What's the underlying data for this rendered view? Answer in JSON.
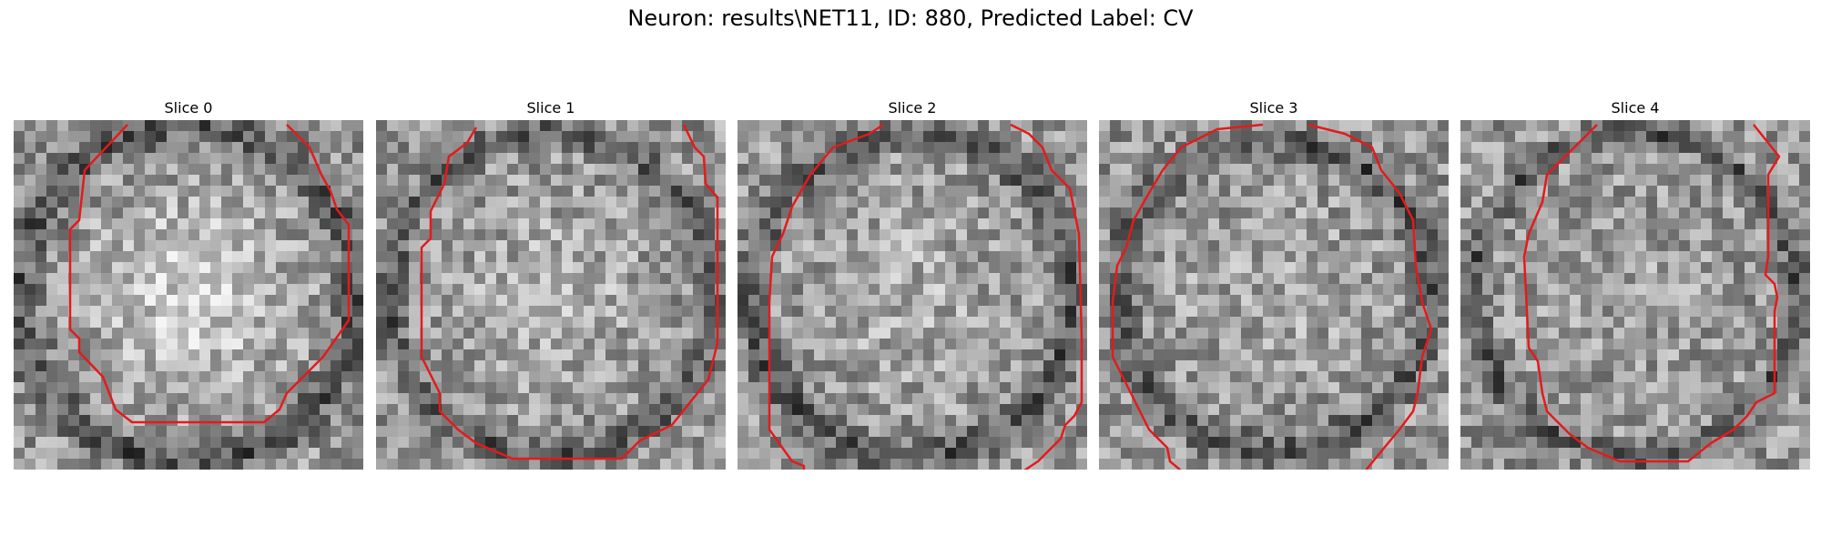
{
  "figure": {
    "title": "Neuron: results\\NET11, ID: 880, Predicted Label: CV",
    "contour_color": "#e41a1c"
  },
  "slices": [
    {
      "title": "Slice 0"
    },
    {
      "title": "Slice 1"
    },
    {
      "title": "Slice 2"
    },
    {
      "title": "Slice 3"
    },
    {
      "title": "Slice 4"
    }
  ]
}
